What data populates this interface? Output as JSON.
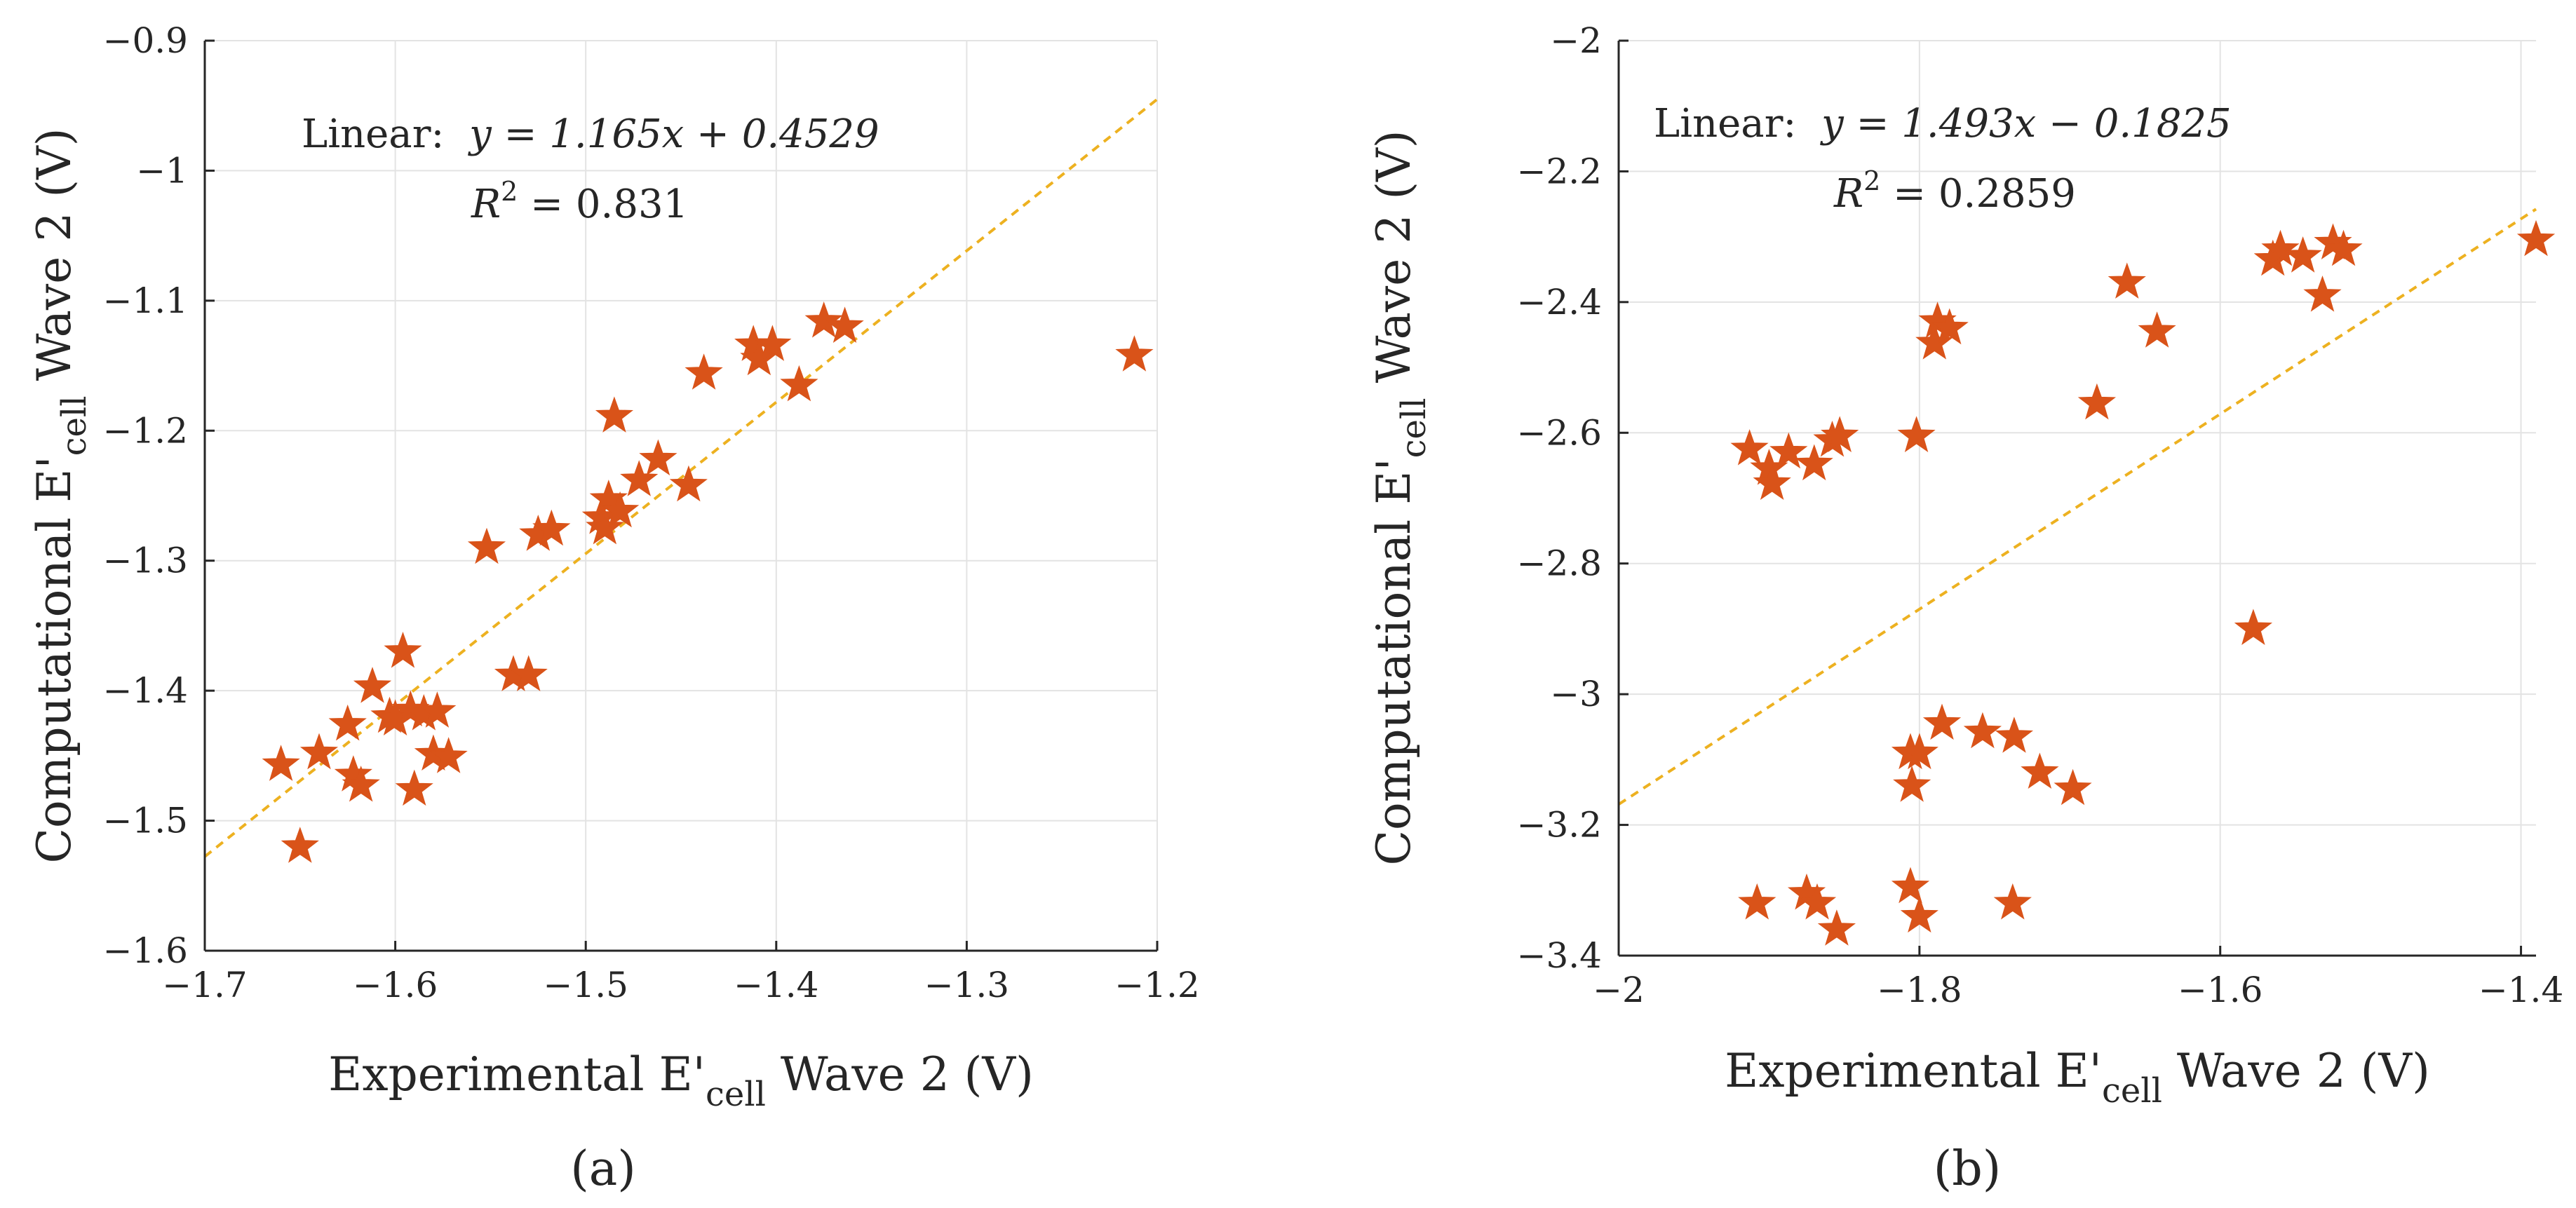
{
  "chart_data": [
    {
      "type": "scatter",
      "panel_label": "(a)",
      "xlabel": {
        "pre": "Experimental E'",
        "sub": "cell",
        "post": " Wave 2 (V)"
      },
      "ylabel": {
        "pre": "Computational E'",
        "sub": "cell",
        "post": " Wave 2 (V)"
      },
      "xlim": [
        -1.7,
        -1.2
      ],
      "ylim": [
        -1.6,
        -0.9
      ],
      "xticks": [
        -1.7,
        -1.6,
        -1.5,
        -1.4,
        -1.3,
        -1.2
      ],
      "yticks": [
        -1.6,
        -1.5,
        -1.4,
        -1.3,
        -1.2,
        -1.1,
        -1.0,
        -0.9
      ],
      "xtick_labels": [
        "−1.7",
        "−1.6",
        "−1.5",
        "−1.4",
        "−1.3",
        "−1.2"
      ],
      "ytick_labels": [
        "−1.6",
        "−1.5",
        "−1.4",
        "−1.3",
        "−1.2",
        "−1.1",
        "−1",
        "−0.9"
      ],
      "grid": true,
      "marker_color": "#d95319",
      "fit_color": "#edb120",
      "fit": {
        "slope": 1.165,
        "intercept": 0.4529
      },
      "annotation": {
        "lead": "Linear:",
        "equation": "y = 1.165x + 0.4529",
        "r2_value": " = 0.831"
      },
      "series": [
        {
          "name": "data",
          "points": [
            [
              -1.66,
              -1.457
            ],
            [
              -1.65,
              -1.52
            ],
            [
              -1.64,
              -1.448
            ],
            [
              -1.625,
              -1.426
            ],
            [
              -1.622,
              -1.465
            ],
            [
              -1.618,
              -1.473
            ],
            [
              -1.612,
              -1.397
            ],
            [
              -1.603,
              -1.42
            ],
            [
              -1.6,
              -1.422
            ],
            [
              -1.596,
              -1.37
            ],
            [
              -1.592,
              -1.415
            ],
            [
              -1.59,
              -1.476
            ],
            [
              -1.585,
              -1.418
            ],
            [
              -1.58,
              -1.449
            ],
            [
              -1.578,
              -1.416
            ],
            [
              -1.572,
              -1.451
            ],
            [
              -1.552,
              -1.29
            ],
            [
              -1.538,
              -1.388
            ],
            [
              -1.53,
              -1.388
            ],
            [
              -1.525,
              -1.28
            ],
            [
              -1.518,
              -1.276
            ],
            [
              -1.492,
              -1.267
            ],
            [
              -1.49,
              -1.275
            ],
            [
              -1.488,
              -1.253
            ],
            [
              -1.485,
              -1.189
            ],
            [
              -1.482,
              -1.262
            ],
            [
              -1.472,
              -1.238
            ],
            [
              -1.462,
              -1.222
            ],
            [
              -1.446,
              -1.242
            ],
            [
              -1.438,
              -1.156
            ],
            [
              -1.412,
              -1.134
            ],
            [
              -1.409,
              -1.145
            ],
            [
              -1.402,
              -1.134
            ],
            [
              -1.388,
              -1.165
            ],
            [
              -1.375,
              -1.116
            ],
            [
              -1.364,
              -1.12
            ],
            [
              -1.212,
              -1.142
            ]
          ]
        }
      ]
    },
    {
      "type": "scatter",
      "panel_label": "(b)",
      "xlabel": {
        "pre": "Experimental E'",
        "sub": "cell",
        "post": " Wave 2 (V)"
      },
      "ylabel": {
        "pre": "Computational E'",
        "sub": "cell",
        "post": " Wave 2 (V)"
      },
      "xlim": [
        -2.0,
        -1.39
      ],
      "ylim": [
        -3.4,
        -2.0
      ],
      "xticks": [
        -2.0,
        -1.8,
        -1.6,
        -1.4
      ],
      "yticks": [
        -3.4,
        -3.2,
        -3.0,
        -2.8,
        -2.6,
        -2.4,
        -2.2,
        -2.0
      ],
      "xtick_labels": [
        "−2",
        "−1.8",
        "−1.6",
        "−1.4"
      ],
      "ytick_labels": [
        "−3.4",
        "−3.2",
        "−3",
        "−2.8",
        "−2.6",
        "−2.4",
        "−2.2",
        "−2"
      ],
      "grid": true,
      "marker_color": "#d95319",
      "fit_color": "#edb120",
      "fit": {
        "slope": 1.493,
        "intercept": -0.1825
      },
      "annotation": {
        "lead": "Linear:",
        "equation": "y = 1.493x − 0.1825",
        "r2_value": " = 0.2859"
      },
      "series": [
        {
          "name": "data",
          "points": [
            [
              -1.913,
              -2.625
            ],
            [
              -1.9,
              -2.655
            ],
            [
              -1.898,
              -2.678
            ],
            [
              -1.887,
              -2.63
            ],
            [
              -1.87,
              -2.648
            ],
            [
              -1.858,
              -2.612
            ],
            [
              -1.853,
              -2.605
            ],
            [
              -1.802,
              -2.605
            ],
            [
              -1.79,
              -2.463
            ],
            [
              -1.788,
              -2.43
            ],
            [
              -1.78,
              -2.44
            ],
            [
              -1.682,
              -2.555
            ],
            [
              -1.662,
              -2.37
            ],
            [
              -1.642,
              -2.445
            ],
            [
              -1.565,
              -2.335
            ],
            [
              -1.56,
              -2.32
            ],
            [
              -1.545,
              -2.33
            ],
            [
              -1.532,
              -2.39
            ],
            [
              -1.525,
              -2.31
            ],
            [
              -1.518,
              -2.32
            ],
            [
              -1.39,
              -2.305
            ],
            [
              -1.578,
              -2.9
            ],
            [
              -1.806,
              -3.09
            ],
            [
              -1.805,
              -3.14
            ],
            [
              -1.8,
              -3.09
            ],
            [
              -1.785,
              -3.045
            ],
            [
              -1.758,
              -3.058
            ],
            [
              -1.737,
              -3.065
            ],
            [
              -1.72,
              -3.12
            ],
            [
              -1.698,
              -3.145
            ],
            [
              -1.908,
              -3.32
            ],
            [
              -1.875,
              -3.305
            ],
            [
              -1.868,
              -3.32
            ],
            [
              -1.855,
              -3.36
            ],
            [
              -1.806,
              -3.295
            ],
            [
              -1.8,
              -3.34
            ],
            [
              -1.738,
              -3.32
            ]
          ]
        }
      ]
    }
  ]
}
